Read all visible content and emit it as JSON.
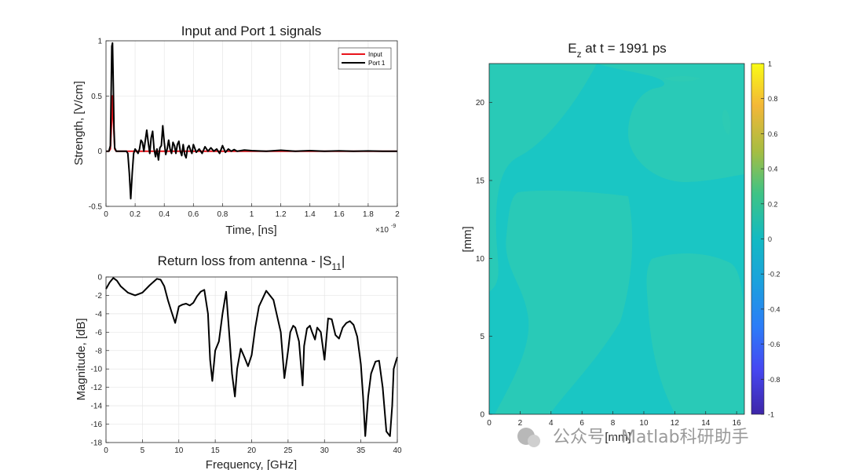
{
  "chart_data": [
    {
      "type": "line",
      "title": "Input and Port 1 signals",
      "xlabel": "Time, [ns]",
      "ylabel": "Strength, [V/cm]",
      "x_exponent": "×10",
      "x_exponent_power": "-9",
      "xlim": [
        0,
        2
      ],
      "ylim": [
        -0.5,
        1
      ],
      "xticks": [
        "0",
        "0.2",
        "0.4",
        "0.6",
        "0.8",
        "1",
        "1.2",
        "1.4",
        "1.6",
        "1.8",
        "2"
      ],
      "yticks": [
        "-0.5",
        "0",
        "0.5",
        "1"
      ],
      "legend": {
        "position": "top-right",
        "entries": [
          "Input",
          "Port 1"
        ]
      },
      "series": [
        {
          "name": "Input",
          "color": "#e8141b",
          "x": [
            0,
            0.02,
            0.03,
            0.04,
            0.045,
            0.05,
            0.06,
            0.07,
            0.1,
            0.5,
            1,
            2
          ],
          "y": [
            0,
            0,
            0.02,
            0.3,
            0.5,
            0.3,
            0.02,
            0,
            0,
            0,
            0,
            0
          ]
        },
        {
          "name": "Port 1",
          "color": "#000000",
          "x": [
            0,
            0.02,
            0.03,
            0.035,
            0.04,
            0.045,
            0.05,
            0.055,
            0.06,
            0.07,
            0.08,
            0.1,
            0.12,
            0.14,
            0.15,
            0.16,
            0.17,
            0.18,
            0.19,
            0.2,
            0.21,
            0.22,
            0.23,
            0.24,
            0.25,
            0.26,
            0.27,
            0.28,
            0.29,
            0.3,
            0.31,
            0.32,
            0.33,
            0.34,
            0.35,
            0.36,
            0.37,
            0.38,
            0.39,
            0.4,
            0.41,
            0.42,
            0.43,
            0.44,
            0.45,
            0.46,
            0.47,
            0.48,
            0.49,
            0.5,
            0.51,
            0.52,
            0.53,
            0.54,
            0.55,
            0.56,
            0.57,
            0.58,
            0.59,
            0.6,
            0.62,
            0.64,
            0.66,
            0.68,
            0.7,
            0.72,
            0.74,
            0.76,
            0.78,
            0.8,
            0.82,
            0.84,
            0.86,
            0.88,
            0.9,
            0.95,
            1.0,
            1.1,
            1.2,
            1.3,
            1.4,
            1.5,
            1.6,
            1.7,
            1.8,
            1.9,
            2.0
          ],
          "y": [
            0,
            0,
            0.05,
            0.5,
            0.95,
            0.98,
            0.6,
            0.2,
            0.03,
            0,
            0,
            0,
            0,
            0,
            -0.02,
            -0.2,
            -0.43,
            -0.2,
            -0.02,
            0.02,
            0,
            -0.02,
            0.02,
            0.1,
            0.08,
            0.0,
            0.1,
            0.19,
            0.08,
            -0.02,
            0.12,
            0.18,
            0.02,
            -0.05,
            0.02,
            -0.08,
            0.03,
            0.05,
            0.23,
            0.08,
            -0.03,
            0.02,
            0.1,
            0.02,
            -0.02,
            0.08,
            0.05,
            -0.02,
            0.06,
            0.09,
            0.0,
            -0.04,
            0.06,
            -0.03,
            -0.06,
            0.03,
            0.05,
            0.01,
            -0.02,
            0.06,
            -0.01,
            0.02,
            -0.02,
            0.04,
            0.0,
            0.03,
            0.0,
            0.02,
            -0.02,
            0.05,
            -0.01,
            0.02,
            0.0,
            0.015,
            0.0,
            0.01,
            0.005,
            0.0,
            0.008,
            0.0,
            0.005,
            0.0,
            0.003,
            0.0,
            0.002,
            0.0,
            0.0
          ]
        }
      ]
    },
    {
      "type": "line",
      "title": "Return loss from antenna - |S",
      "title_sub": "11",
      "title_end": "|",
      "xlabel": "Frequency, [GHz]",
      "ylabel": "Magnitude, [dB]",
      "xlim": [
        0,
        40
      ],
      "ylim": [
        -18,
        0
      ],
      "xticks": [
        "0",
        "5",
        "10",
        "15",
        "20",
        "25",
        "30",
        "35",
        "40"
      ],
      "yticks": [
        "-18",
        "-16",
        "-14",
        "-12",
        "-10",
        "-8",
        "-6",
        "-4",
        "-2",
        "0"
      ],
      "series": [
        {
          "name": "S11",
          "color": "#000000",
          "x": [
            0,
            0.5,
            1,
            1.5,
            2,
            3,
            4,
            5,
            6,
            7,
            7.5,
            8,
            8.5,
            9,
            9.5,
            10,
            10.5,
            11,
            11.5,
            12,
            12.5,
            13,
            13.5,
            14,
            14.3,
            14.6,
            15,
            15.5,
            16,
            16.5,
            17,
            17.3,
            17.7,
            18,
            18.5,
            19,
            19.5,
            20,
            20.5,
            21,
            22,
            23,
            24,
            24.5,
            25,
            25.3,
            25.7,
            26,
            26.5,
            27,
            27.2,
            27.6,
            28,
            28.3,
            28.7,
            29,
            29.5,
            30,
            30.5,
            31,
            31.5,
            32,
            32.5,
            33,
            33.5,
            34,
            34.5,
            35,
            35.3,
            35.6,
            36,
            36.4,
            37,
            37.5,
            38,
            38.5,
            39,
            39.3,
            39.5,
            39.8,
            40
          ],
          "y": [
            -1.3,
            -0.6,
            -0.1,
            -0.4,
            -1,
            -1.7,
            -2,
            -1.7,
            -0.9,
            -0.2,
            -0.3,
            -1,
            -2.5,
            -3.8,
            -5,
            -3.2,
            -3,
            -2.9,
            -3.1,
            -2.8,
            -2.1,
            -1.6,
            -1.4,
            -4,
            -9,
            -11.3,
            -8,
            -7,
            -4,
            -1.6,
            -7,
            -10.5,
            -13,
            -10,
            -7.8,
            -8.7,
            -9.7,
            -8.5,
            -5.5,
            -3.2,
            -1.5,
            -2.5,
            -6,
            -11,
            -8,
            -6,
            -5.3,
            -5.5,
            -7,
            -11.8,
            -7.5,
            -5.6,
            -5.3,
            -6,
            -6.8,
            -5.5,
            -6,
            -9,
            -4.5,
            -4.6,
            -6.3,
            -6.7,
            -5.5,
            -5,
            -4.8,
            -5.2,
            -6.5,
            -9.5,
            -13,
            -17.3,
            -13,
            -10.5,
            -9.2,
            -9.1,
            -12,
            -16.8,
            -17.3,
            -14,
            -10,
            -9.2,
            -8.7
          ]
        }
      ]
    },
    {
      "type": "heatmap",
      "title": "E",
      "title_sub": "z",
      "title_end": " at t = 1991 ps",
      "xlabel": "[mm]",
      "ylabel": "[mm]",
      "xlim": [
        0,
        16.5
      ],
      "ylim": [
        0,
        22.5
      ],
      "xticks": [
        "0",
        "2",
        "4",
        "6",
        "8",
        "10",
        "12",
        "14",
        "16"
      ],
      "yticks": [
        "0",
        "5",
        "10",
        "15",
        "20"
      ],
      "colorbar": {
        "min": -1,
        "max": 1,
        "ticks": [
          "-1",
          "-0.8",
          "-0.6",
          "-0.4",
          "-0.2",
          "0",
          "0.2",
          "0.4",
          "0.6",
          "0.8",
          "1"
        ]
      },
      "field_value": 0.02,
      "background_color": "#1ac6c4",
      "patch_color": "#2fcbb3"
    }
  ],
  "watermark": {
    "text": "公众号 · Matlab科研助手"
  }
}
